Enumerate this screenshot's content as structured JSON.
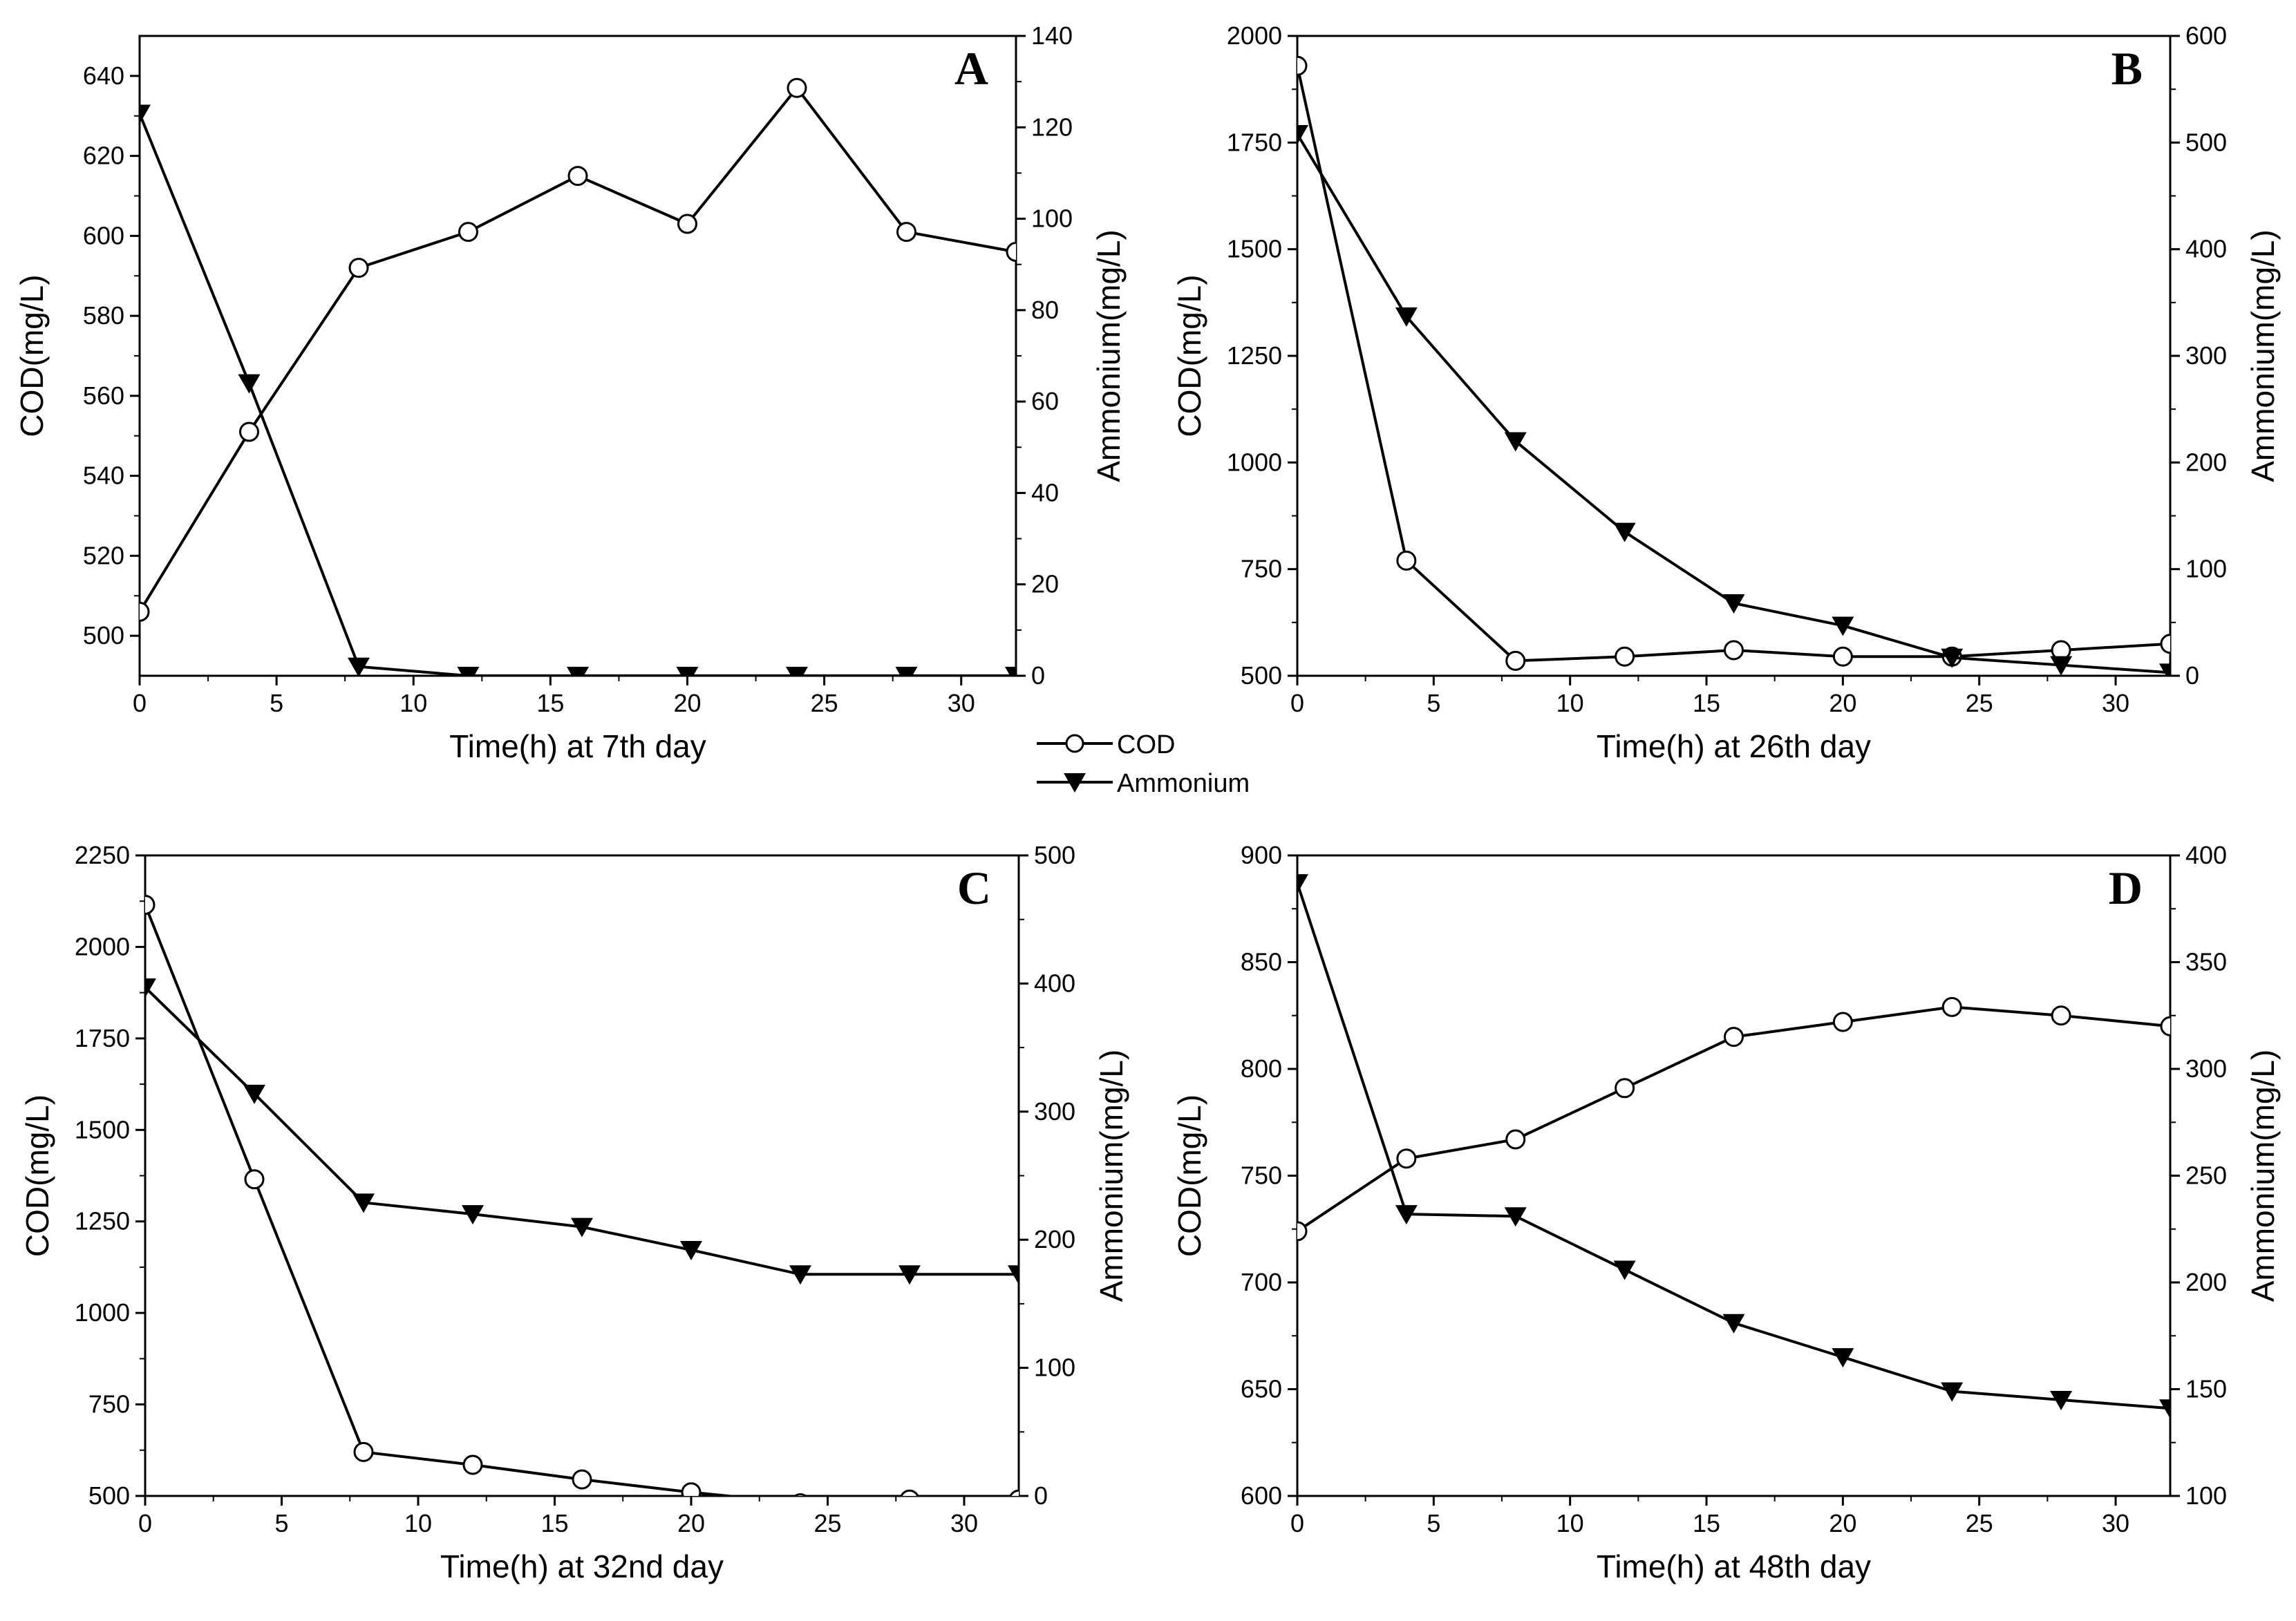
{
  "legend": {
    "cod_label": "COD",
    "ammonium_label": "Ammonium"
  },
  "colors": {
    "line": "#000000",
    "background": "#ffffff",
    "open_marker_fill": "#ffffff"
  },
  "chart_data": [
    {
      "type": "line",
      "panel": "A",
      "xlabel": "Time(h) at 7th day",
      "ylabel_left": "COD(mg/L)",
      "ylabel_right": "Ammonium(mg/L)",
      "xlim": [
        0,
        32
      ],
      "xticks": [
        0,
        5,
        10,
        15,
        20,
        25,
        30
      ],
      "ylim_left": [
        490,
        650
      ],
      "yticks_left": [
        500,
        520,
        540,
        560,
        580,
        600,
        620,
        640
      ],
      "ylim_right": [
        0,
        140
      ],
      "yticks_right": [
        0,
        20,
        40,
        60,
        80,
        100,
        120,
        140
      ],
      "x": [
        0,
        4,
        8,
        12,
        16,
        20,
        24,
        28,
        32
      ],
      "series": [
        {
          "name": "COD",
          "axis": "left",
          "marker": "open-circle",
          "values": [
            506,
            551,
            592,
            601,
            615,
            603,
            637,
            601,
            596
          ]
        },
        {
          "name": "Ammonium",
          "axis": "right",
          "marker": "filled-triangle-down",
          "values": [
            123,
            64,
            2,
            0,
            0,
            0,
            0,
            0,
            0
          ]
        }
      ]
    },
    {
      "type": "line",
      "panel": "B",
      "xlabel": "Time(h) at 26th day",
      "ylabel_left": "COD(mg/L)",
      "ylabel_right": "Ammonium(mg/L)",
      "xlim": [
        0,
        32
      ],
      "xticks": [
        0,
        5,
        10,
        15,
        20,
        25,
        30
      ],
      "ylim_left": [
        500,
        2000
      ],
      "yticks_left": [
        500,
        750,
        1000,
        1250,
        1500,
        1750,
        2000
      ],
      "ylim_right": [
        0,
        600
      ],
      "yticks_right": [
        0,
        100,
        200,
        300,
        400,
        500,
        600
      ],
      "x": [
        0,
        4,
        8,
        12,
        16,
        20,
        24,
        28,
        32
      ],
      "series": [
        {
          "name": "COD",
          "axis": "left",
          "marker": "open-circle",
          "values": [
            1930,
            770,
            535,
            545,
            560,
            545,
            545,
            560,
            575
          ]
        },
        {
          "name": "Ammonium",
          "axis": "right",
          "marker": "filled-triangle-down",
          "values": [
            508,
            337,
            220,
            135,
            68,
            47,
            17,
            10,
            3
          ]
        }
      ]
    },
    {
      "type": "line",
      "panel": "C",
      "xlabel": "Time(h) at 32nd day",
      "ylabel_left": "COD(mg/L)",
      "ylabel_right": "Ammonium(mg/L)",
      "xlim": [
        0,
        32
      ],
      "xticks": [
        0,
        5,
        10,
        15,
        20,
        25,
        30
      ],
      "ylim_left": [
        500,
        2250
      ],
      "yticks_left": [
        500,
        750,
        1000,
        1250,
        1500,
        1750,
        2000,
        2250
      ],
      "ylim_right": [
        0,
        500
      ],
      "yticks_right": [
        0,
        100,
        200,
        300,
        400,
        500
      ],
      "x": [
        0,
        4,
        8,
        12,
        16,
        20,
        24,
        28,
        32
      ],
      "series": [
        {
          "name": "COD",
          "axis": "left",
          "marker": "open-circle",
          "values": [
            2115,
            1365,
            620,
            585,
            545,
            510,
            480,
            490,
            490
          ]
        },
        {
          "name": "Ammonium",
          "axis": "right",
          "marker": "filled-triangle-down",
          "values": [
            397,
            314,
            229,
            220,
            210,
            192,
            173,
            173,
            173
          ]
        }
      ]
    },
    {
      "type": "line",
      "panel": "D",
      "xlabel": "Time(h) at 48th day",
      "ylabel_left": "COD(mg/L)",
      "ylabel_right": "Ammonium(mg/L)",
      "xlim": [
        0,
        32
      ],
      "xticks": [
        0,
        5,
        10,
        15,
        20,
        25,
        30
      ],
      "ylim_left": [
        600,
        900
      ],
      "yticks_left": [
        600,
        650,
        700,
        750,
        800,
        850,
        900
      ],
      "ylim_right": [
        100,
        400
      ],
      "yticks_right": [
        100,
        150,
        200,
        250,
        300,
        350,
        400
      ],
      "x": [
        0,
        4,
        8,
        12,
        16,
        20,
        24,
        28,
        32
      ],
      "series": [
        {
          "name": "COD",
          "axis": "left",
          "marker": "open-circle",
          "values": [
            724,
            758,
            767,
            791,
            815,
            822,
            829,
            825,
            820
          ]
        },
        {
          "name": "Ammonium",
          "axis": "right",
          "marker": "filled-triangle-down",
          "values": [
            387,
            232,
            231,
            206,
            181,
            165,
            149,
            145,
            141
          ]
        }
      ]
    }
  ]
}
